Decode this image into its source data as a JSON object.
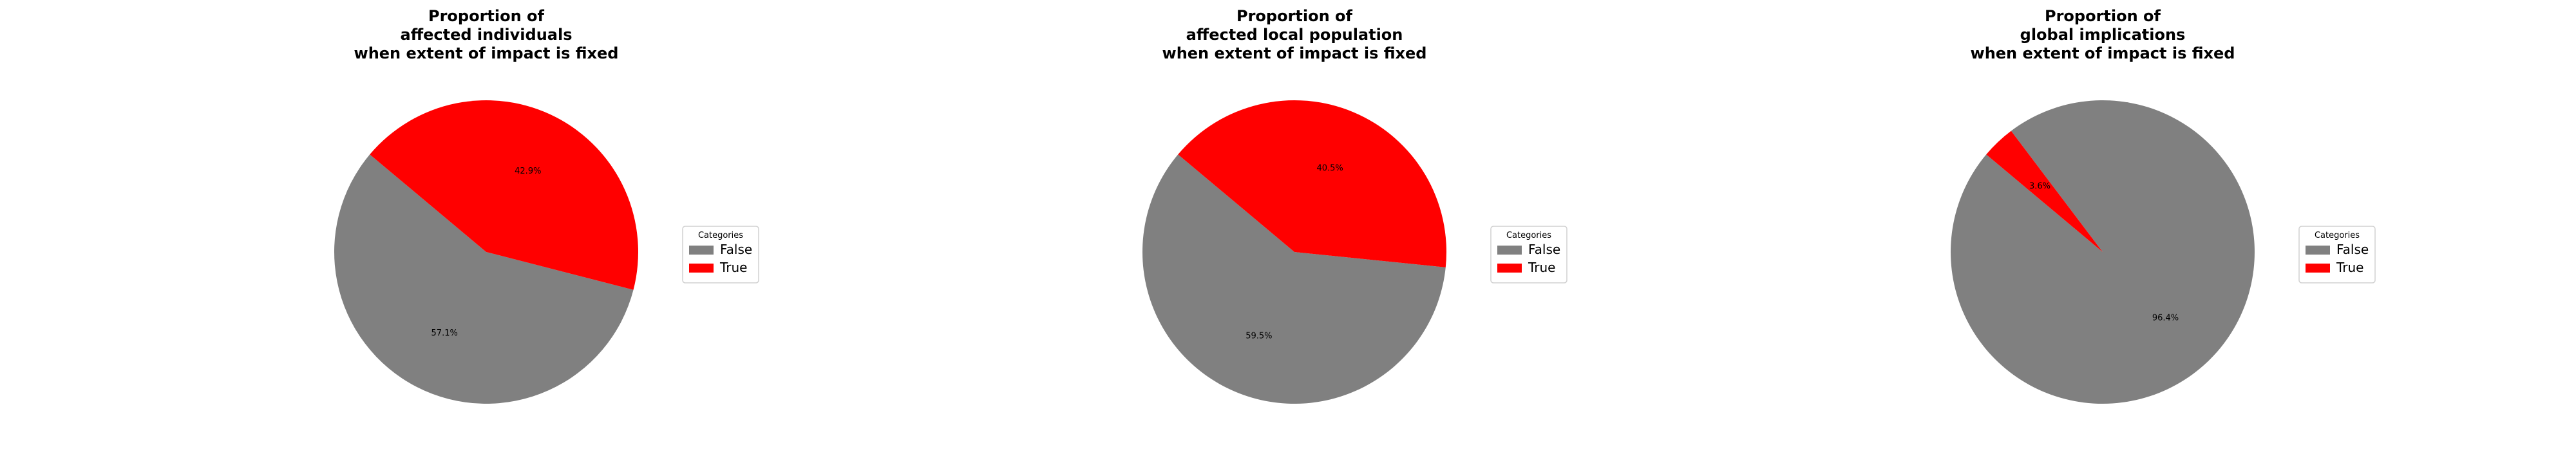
{
  "chart_data": [
    {
      "type": "pie",
      "title_lines": [
        "Proportion of",
        "affected individuals",
        "when extent of impact is fixed"
      ],
      "categories": [
        "False",
        "True"
      ],
      "values": [
        57.1,
        42.9
      ],
      "labels": [
        "57.1%",
        "42.9%"
      ],
      "colors": [
        "#808080",
        "#ff0000"
      ],
      "start_angle_deg": 140,
      "legend": {
        "title": "Categories",
        "entries": [
          "False",
          "True"
        ],
        "placement": "right"
      }
    },
    {
      "type": "pie",
      "title_lines": [
        "Proportion of",
        "affected local population",
        "when extent of impact is fixed"
      ],
      "categories": [
        "False",
        "True"
      ],
      "values": [
        59.5,
        40.5
      ],
      "labels": [
        "59.5%",
        "40.5%"
      ],
      "colors": [
        "#808080",
        "#ff0000"
      ],
      "start_angle_deg": 140,
      "legend": {
        "title": "Categories",
        "entries": [
          "False",
          "True"
        ],
        "placement": "right"
      }
    },
    {
      "type": "pie",
      "title_lines": [
        "Proportion of",
        "global implications",
        "when extent of impact is fixed"
      ],
      "categories": [
        "False",
        "True"
      ],
      "values": [
        96.4,
        3.6
      ],
      "labels": [
        "96.4%",
        "3.6%"
      ],
      "colors": [
        "#808080",
        "#ff0000"
      ],
      "start_angle_deg": 140,
      "legend": {
        "title": "Categories",
        "entries": [
          "False",
          "True"
        ],
        "placement": "right"
      }
    }
  ]
}
